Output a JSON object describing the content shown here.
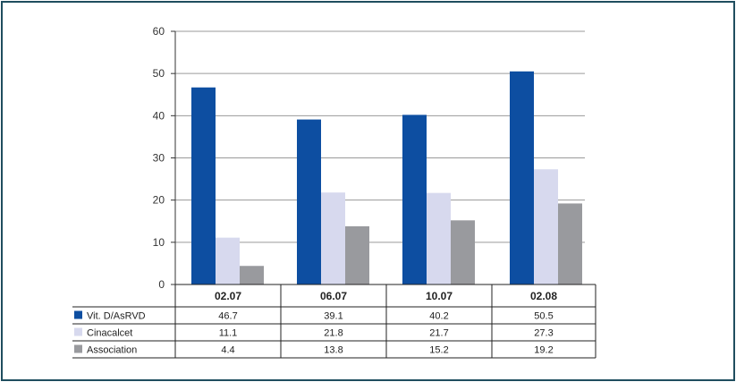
{
  "chart_data": {
    "type": "bar",
    "categories": [
      "02.07",
      "06.07",
      "10.07",
      "02.08"
    ],
    "series": [
      {
        "name": "Vit. D/AsRVD",
        "values": [
          46.7,
          39.1,
          40.2,
          50.5
        ],
        "color": "#0d4ea1",
        "display_values": [
          "46.7",
          "39.1",
          "40.2",
          "50.5"
        ]
      },
      {
        "name": "Cinacalcet",
        "values": [
          11.1,
          21.8,
          21.7,
          27.3
        ],
        "color": "#d7d9ee",
        "display_values": [
          "11.1",
          "21.8",
          "21.7",
          "27.3"
        ]
      },
      {
        "name": "Association",
        "values": [
          4.4,
          13.8,
          15.2,
          19.2
        ],
        "color": "#999a9e",
        "display_values": [
          "4.4",
          "13.8",
          "15.2",
          "19.2"
        ]
      }
    ],
    "y_ticks": [
      "0",
      "10",
      "20",
      "30",
      "40",
      "50",
      "60"
    ],
    "ylim": [
      0,
      60
    ],
    "grid": true,
    "legend": "data-table-left"
  }
}
